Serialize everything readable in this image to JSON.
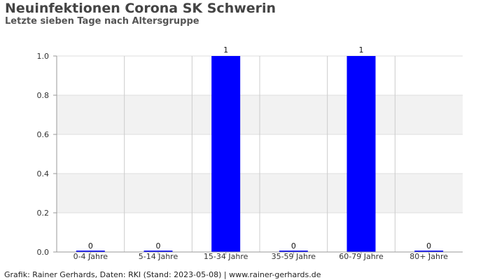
{
  "chart_data": {
    "type": "bar",
    "title": "Neuinfektionen Corona SK Schwerin",
    "subtitle": "Letzte sieben Tage nach Altersgruppe",
    "categories": [
      "0-4 Jahre",
      "5-14 Jahre",
      "15-34 Jahre",
      "35-59 Jahre",
      "60-79 Jahre",
      "80+ Jahre"
    ],
    "values": [
      0,
      0,
      1,
      0,
      1,
      0
    ],
    "data_labels": [
      "0",
      "0",
      "1",
      "0",
      "1",
      "0"
    ],
    "ylim": [
      0,
      1.0
    ],
    "yticks": [
      "0.0",
      "0.2",
      "0.4",
      "0.6",
      "0.8",
      "1.0"
    ],
    "xlabel": "",
    "ylabel": "",
    "bar_color": "#0000ff",
    "grid": true,
    "band_color": "#f2f2f2"
  },
  "footer": "Grafik: Rainer Gerhards, Daten: RKI (Stand: 2023-05-08) | www.rainer-gerhards.de"
}
